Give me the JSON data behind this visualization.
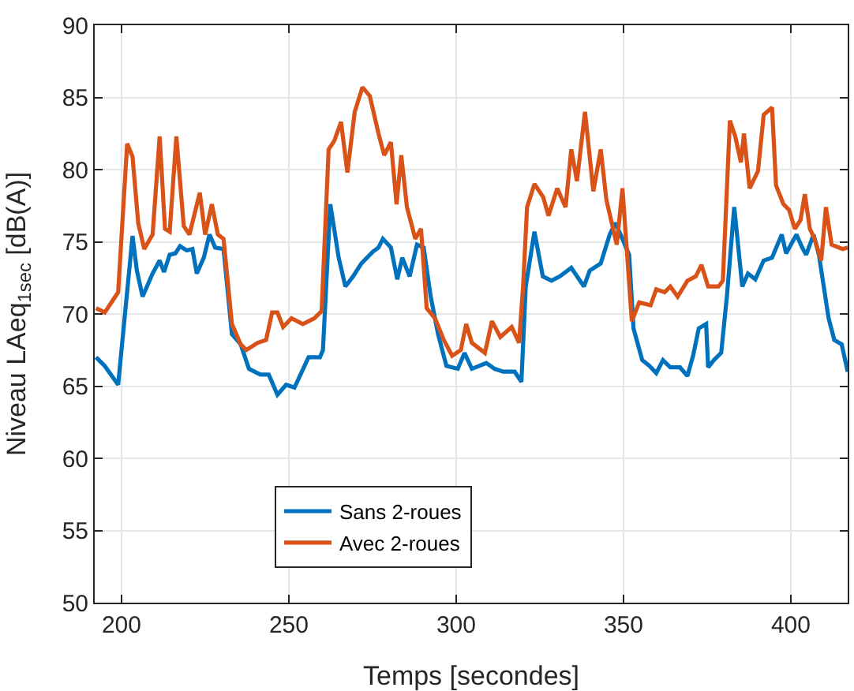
{
  "chart_data": {
    "type": "line",
    "xlabel": "Temps [secondes]",
    "ylabel": "Niveau LAeq$_{1sec}$ [dB(A)]",
    "xlim": [
      192,
      417
    ],
    "xticks": [
      200,
      250,
      300,
      350,
      400
    ],
    "ylim": [
      50,
      90
    ],
    "yticks": [
      50,
      55,
      60,
      65,
      70,
      75,
      80,
      85,
      90
    ],
    "grid": true,
    "legend": "bottom",
    "marker": "none",
    "line_style": "solid",
    "series": [
      {
        "name": "Sans 2-roues",
        "color": "#0072bd",
        "x": [
          192.4,
          195,
          199,
          203.3,
          204.6,
          206.3,
          209.3,
          211.4,
          212.7,
          214.4,
          216.1,
          217.5,
          219.5,
          221.2,
          222.5,
          224.6,
          226.3,
          228,
          230.5,
          233,
          235.6,
          238.1,
          241.5,
          244,
          246.6,
          249.2,
          251.7,
          255.9,
          259.3,
          260.2,
          262.4,
          264.9,
          266.9,
          269.2,
          271.7,
          275.1,
          276.8,
          278.1,
          280.5,
          282.4,
          283.9,
          286.1,
          288.3,
          290.3,
          292.4,
          294.6,
          297.1,
          300.5,
          302.5,
          304.7,
          309,
          311.5,
          314.1,
          317.5,
          319.5,
          320.8,
          323.4,
          325.9,
          328.5,
          331,
          334.4,
          338.2,
          339.9,
          343.2,
          345.9,
          347.6,
          349.7,
          351.7,
          353,
          355.6,
          357.8,
          359.8,
          361.8,
          364,
          366.9,
          369.1,
          370.8,
          372.5,
          374.7,
          375.3,
          377,
          379.2,
          380.9,
          383.1,
          385.5,
          387.2,
          389.4,
          391.9,
          394.4,
          397.3,
          398.6,
          401.7,
          403.4,
          404.6,
          406.8,
          408.4,
          411.3,
          413,
          415.2,
          417
        ],
        "values": [
          67,
          66.4,
          65.1,
          75.4,
          73,
          71.2,
          72.8,
          73.7,
          72.9,
          74.1,
          74.2,
          74.7,
          74.4,
          74.5,
          72.8,
          73.9,
          75.5,
          74.6,
          74.5,
          68.6,
          67.9,
          66.2,
          65.8,
          65.8,
          64.4,
          65.1,
          64.9,
          67,
          67,
          67.5,
          77.6,
          73.9,
          71.9,
          72.6,
          73.5,
          74.3,
          74.6,
          75.2,
          74.6,
          72.4,
          73.9,
          72.6,
          74.8,
          74.6,
          71.2,
          68.6,
          66.4,
          66.2,
          67.3,
          66.2,
          66.6,
          66.2,
          66,
          66,
          65.3,
          71.9,
          75.7,
          72.6,
          72.3,
          72.6,
          73.2,
          71.9,
          73,
          73.5,
          75.5,
          76.3,
          75.2,
          74.1,
          69,
          66.8,
          66.4,
          65.9,
          66.8,
          66.3,
          66.3,
          65.7,
          67.1,
          69,
          69.3,
          66.3,
          66.8,
          67.3,
          71.2,
          77.4,
          71.9,
          72.8,
          72.4,
          73.7,
          73.9,
          75.5,
          74.2,
          75.5,
          74.6,
          74.1,
          75.5,
          74.1,
          69.7,
          68.2,
          67.9,
          66
        ]
      },
      {
        "name": "Avec 2-roues",
        "color": "#d95319",
        "x": [
          192.4,
          195,
          199,
          201.7,
          203.3,
          205,
          206.8,
          209.3,
          211.4,
          213,
          214.4,
          216.4,
          218.6,
          220.3,
          223.4,
          225,
          227,
          228.8,
          230.5,
          233,
          235.6,
          237.3,
          240.7,
          243.2,
          245,
          246.6,
          248.3,
          250.8,
          254.2,
          257.6,
          259.8,
          261.9,
          263.6,
          265.6,
          267.5,
          269.7,
          272,
          274.2,
          276.8,
          278.5,
          280.5,
          282.2,
          283.6,
          285.3,
          287.8,
          289.5,
          291.2,
          293.7,
          296.3,
          298.8,
          301.4,
          303,
          304.7,
          308.6,
          310.7,
          313.2,
          316.6,
          318.8,
          320,
          321.2,
          323.4,
          326,
          327.6,
          330.2,
          332.7,
          334.4,
          336.1,
          338.5,
          341,
          343.2,
          344.9,
          348,
          349.7,
          352.5,
          354.7,
          358.1,
          359.8,
          362.3,
          364,
          366.2,
          369.1,
          371.6,
          373.3,
          375.3,
          378.4,
          379.7,
          381.8,
          383.4,
          385.1,
          386,
          387.7,
          390.2,
          391.9,
          394.4,
          395.6,
          397.8,
          399.5,
          401.2,
          402.9,
          404.2,
          405.7,
          407.1,
          409.1,
          410.5,
          412.2,
          415.5,
          417
        ],
        "values": [
          70.4,
          70.1,
          71.5,
          81.8,
          80.9,
          76.3,
          74.5,
          75.5,
          82.3,
          75.9,
          75.7,
          82.3,
          76.1,
          75.5,
          78.4,
          75.5,
          77.6,
          75.5,
          75.2,
          69.3,
          67.9,
          67.5,
          68,
          68.2,
          70.1,
          70.1,
          69.1,
          69.7,
          69.3,
          69.7,
          70.2,
          81.4,
          82,
          83.3,
          79.8,
          84,
          85.7,
          85.1,
          82.5,
          81,
          81.9,
          77.6,
          81,
          77.4,
          75.2,
          75.9,
          70.4,
          69.7,
          68.2,
          67.1,
          67.5,
          69.3,
          68,
          67.3,
          69.5,
          68.4,
          69.1,
          68,
          71.9,
          77.4,
          79,
          78.1,
          76.8,
          78.7,
          77.4,
          81.4,
          79.2,
          84,
          78.5,
          81.4,
          77.9,
          74.8,
          78.7,
          69.5,
          70.8,
          70.6,
          71.7,
          71.5,
          71.9,
          71.2,
          72.3,
          72.6,
          73.4,
          71.9,
          71.9,
          72.3,
          83.4,
          82.3,
          80.5,
          82.5,
          78.7,
          79.9,
          83.8,
          84.3,
          78.9,
          77.6,
          77.2,
          75.9,
          76.5,
          78.3,
          75.9,
          75.2,
          73.7,
          77.4,
          74.8,
          74.5,
          74.6
        ]
      }
    ]
  }
}
